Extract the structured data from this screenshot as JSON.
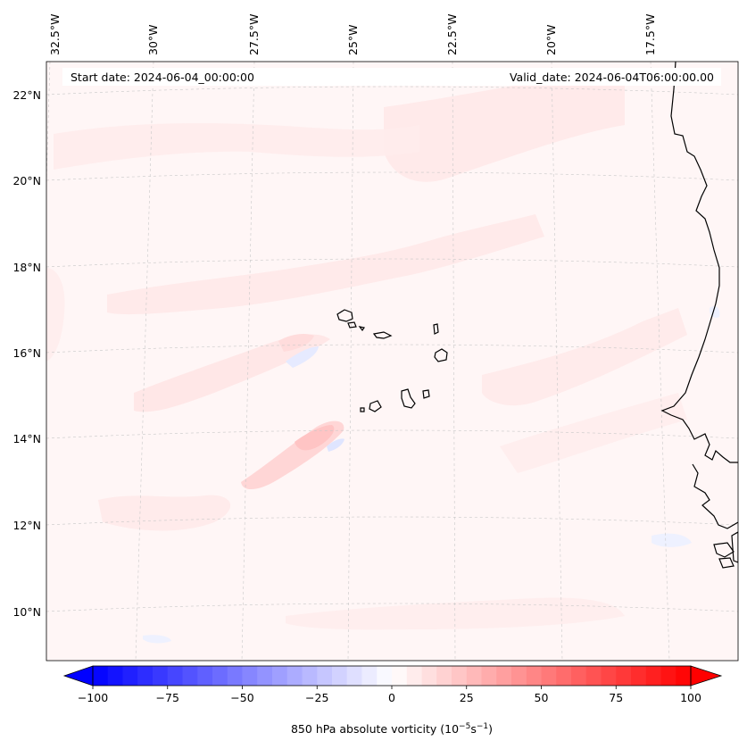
{
  "header": {
    "start_date": "Start date: 2024-06-04_00:00:00",
    "valid_date": "Valid_date: 2024-06-04T06:00:00.00"
  },
  "longitude_labels": [
    "32.5°W",
    "30°W",
    "27.5°W",
    "25°W",
    "22.5°W",
    "20°W",
    "17.5°W"
  ],
  "latitude_labels": [
    "22°N",
    "20°N",
    "18°N",
    "16°N",
    "14°N",
    "12°N",
    "10°N"
  ],
  "colorbar": {
    "label": "850 hPa absolute vorticity (10",
    "label_exp1": "−5",
    "label_mid": "s",
    "label_exp2": "−1",
    "label_end": ")",
    "min": -100,
    "max": 100,
    "step": 5,
    "ticks": [
      "−100",
      "−75",
      "−50",
      "−25",
      "0",
      "25",
      "50",
      "75",
      "100"
    ],
    "low_color": "#0000ff",
    "mid_color": "#ffffff",
    "high_color": "#ff0000",
    "extend": "both"
  },
  "colors": {
    "ocean_tint": "#fff6f6",
    "positive_patch": "#ffe9e9",
    "negative_patch": "#e9ecff",
    "coastline": "#000000",
    "gridline": "#c8c8c8"
  },
  "features": [
    "Cabo Verde islands",
    "West African coastline"
  ]
}
